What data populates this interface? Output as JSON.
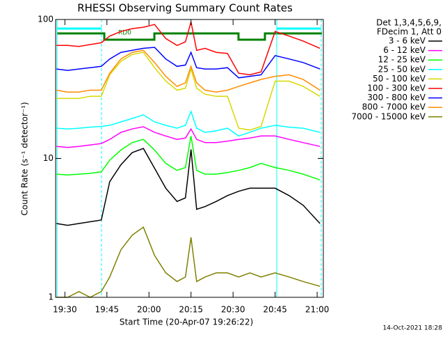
{
  "chart_data": {
    "type": "line",
    "title": "RHESSI Observing Summary Count Rates",
    "x_label": "Start Time (20-Apr-07 19:26:22)",
    "y_label": "Count Rate (s⁻¹ detector⁻¹)",
    "legend_header": [
      "Det 1,3,4,5,6,9,",
      "FDecim 1, Att 0"
    ],
    "legend_position": "right",
    "annotation": "RD0",
    "timestamp": "14-Oct-2021 18:28",
    "log_y": true,
    "xlim": [
      26.7,
      122.2
    ],
    "xticks": [
      {
        "value": 30,
        "label": "19:30"
      },
      {
        "value": 45,
        "label": "19:45"
      },
      {
        "value": 60,
        "label": "20:00"
      },
      {
        "value": 75,
        "label": "20:15"
      },
      {
        "value": 90,
        "label": "20:30"
      },
      {
        "value": 105,
        "label": "20:45"
      },
      {
        "value": 120,
        "label": "21:00"
      }
    ],
    "ylim": [
      1,
      100
    ],
    "yticks": [
      1,
      10,
      100
    ],
    "x": [
      27,
      31,
      35,
      39,
      43,
      46,
      50,
      54,
      58,
      62,
      66,
      70,
      73,
      75,
      77,
      80,
      84,
      88,
      92,
      96,
      100,
      105,
      110,
      115,
      121
    ],
    "series": [
      {
        "name": "3 - 6 keV",
        "color": "#000000",
        "values": [
          3.4,
          3.3,
          3.4,
          3.5,
          3.6,
          6.8,
          9.0,
          11.0,
          11.8,
          8.5,
          6.1,
          4.9,
          5.2,
          11.6,
          4.3,
          4.5,
          4.9,
          5.4,
          5.8,
          6.1,
          6.1,
          6.1,
          5.4,
          4.6,
          3.4
        ]
      },
      {
        "name": "6 - 12 keV",
        "color": "#ff00ff",
        "values": [
          12.2,
          12.0,
          12.2,
          12.5,
          12.8,
          13.7,
          15.4,
          16.3,
          16.9,
          15.4,
          14.5,
          13.7,
          14.0,
          16.3,
          13.7,
          13.0,
          13.0,
          13.3,
          13.7,
          14.0,
          14.5,
          14.5,
          13.7,
          13.0,
          12.2
        ]
      },
      {
        "name": "12 - 25 keV",
        "color": "#00ff00",
        "values": [
          7.7,
          7.6,
          7.7,
          7.8,
          8.0,
          9.7,
          11.5,
          13.0,
          13.7,
          11.5,
          9.2,
          8.2,
          8.6,
          14.5,
          8.2,
          7.7,
          7.7,
          7.9,
          8.2,
          8.6,
          9.2,
          8.6,
          8.2,
          7.7,
          7.0
        ]
      },
      {
        "name": "25 - 50 keV",
        "color": "#00ffff",
        "values": [
          16.5,
          16.3,
          16.5,
          16.8,
          17,
          17.3,
          18.3,
          19.4,
          20.6,
          18.3,
          17.3,
          16.5,
          17.3,
          21.8,
          16.5,
          15.4,
          15.8,
          16.5,
          14.5,
          15.4,
          16.5,
          17.3,
          16.8,
          16.5,
          15.4
        ]
      },
      {
        "name": "50 - 100 keV",
        "color": "#d8d800",
        "values": [
          27,
          27,
          27,
          28,
          28,
          40,
          50,
          56,
          58,
          45,
          36,
          31,
          32,
          44,
          32,
          29,
          28,
          28,
          16.5,
          16,
          17,
          36,
          36,
          33,
          28
        ]
      },
      {
        "name": "100 - 300 keV",
        "color": "#ff0000",
        "values": [
          65,
          65,
          64,
          66,
          68,
          76,
          82,
          86,
          88,
          92,
          73,
          65,
          69,
          96,
          60,
          62,
          58,
          57,
          41,
          40,
          42,
          82,
          76,
          70,
          62
        ]
      },
      {
        "name": "300 - 800 keV",
        "color": "#0000ff",
        "values": [
          44,
          43,
          44,
          45,
          46,
          52,
          58,
          60,
          62,
          63,
          52,
          46,
          47,
          58,
          45,
          44,
          44,
          45,
          38,
          39,
          40,
          55,
          52,
          49,
          44
        ]
      },
      {
        "name": "800 - 7000 keV",
        "color": "#ff8c00",
        "values": [
          31,
          30,
          30,
          31,
          31,
          41,
          52,
          58,
          60,
          49,
          39,
          33,
          35,
          46,
          35,
          31,
          30,
          31,
          33,
          35,
          37,
          39,
          40,
          37,
          31
        ]
      },
      {
        "name": "7000 - 15000 keV",
        "color": "#808000",
        "values": [
          1.0,
          1.0,
          1.1,
          1.0,
          1.1,
          1.4,
          2.2,
          2.8,
          3.2,
          2.0,
          1.5,
          1.3,
          1.4,
          2.7,
          1.3,
          1.4,
          1.5,
          1.5,
          1.4,
          1.5,
          1.4,
          1.5,
          1.4,
          1.3,
          1.2
        ]
      }
    ]
  }
}
